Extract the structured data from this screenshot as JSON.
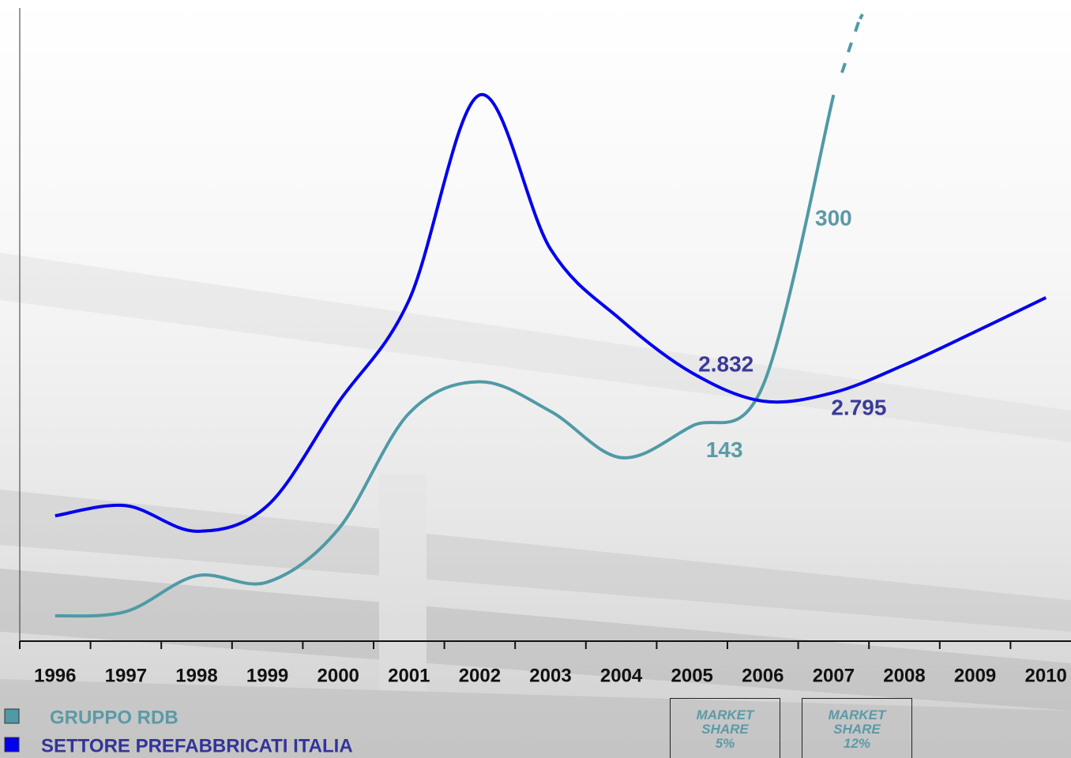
{
  "chart_data": {
    "type": "line",
    "categories": [
      "1996",
      "1997",
      "1998",
      "1999",
      "2000",
      "2001",
      "2002",
      "2003",
      "2004",
      "2005",
      "2006",
      "2007",
      "2008",
      "2009",
      "2010"
    ],
    "series": [
      {
        "name": "GRUPPO RDB",
        "color": "#4f9aa6",
        "axis": "y2",
        "values": [
          53,
          55,
          72,
          69,
          94,
          149,
          164,
          150,
          128,
          143,
          162,
          300,
          null,
          null,
          null
        ],
        "value_labels": [
          null,
          null,
          null,
          null,
          null,
          null,
          null,
          null,
          null,
          "143",
          null,
          "300",
          null,
          null,
          null
        ]
      },
      {
        "name": "SETTORE PREFABBRICATI ITALIA",
        "color": "#0000ee",
        "values": [
          2564,
          2583,
          2535,
          2583,
          2776,
          2968,
          3353,
          3064,
          2931,
          2832,
          2779,
          2795,
          2847,
          2909,
          2973
        ],
        "value_labels": [
          null,
          null,
          null,
          null,
          null,
          null,
          null,
          null,
          null,
          "2.832",
          null,
          "2.795",
          null,
          null,
          null
        ]
      }
    ],
    "ylim": [
      2329,
      3531
    ],
    "y2lim": [
      41,
      345
    ],
    "annotations": [
      {
        "text": "MARKET SHARE",
        "value": "5%"
      },
      {
        "text": "MARKET SHARE",
        "value": "12%"
      }
    ]
  }
}
